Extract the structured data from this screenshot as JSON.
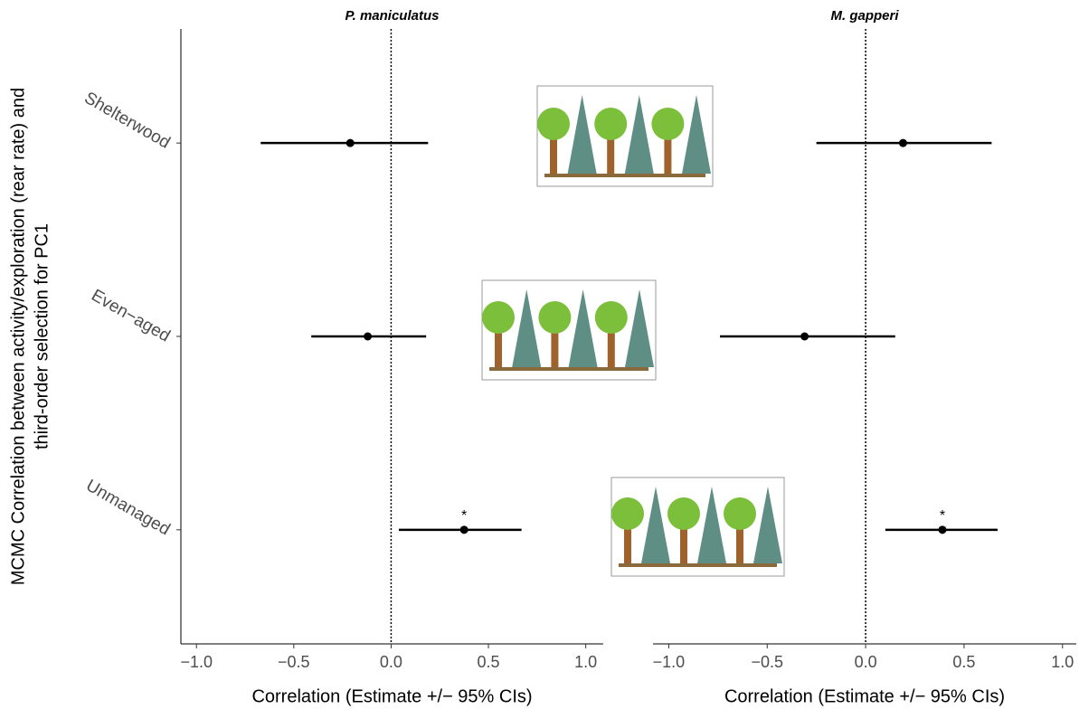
{
  "chart_data": [
    {
      "type": "forest",
      "title": "P. maniculatus",
      "ylabel": [
        "MCMC Correlation between activity/exploration (rear rate) and",
        "third-order selection for PC1"
      ],
      "xlabel": "Correlation (Estimate +/− 95% CIs)",
      "categories": [
        "Shelterwood",
        "Even−aged",
        "Unmanaged"
      ],
      "values": [
        -0.21,
        -0.12,
        0.375
      ],
      "lower": [
        -0.67,
        -0.41,
        0.04
      ],
      "upper": [
        0.19,
        0.18,
        0.67
      ],
      "annotations": [
        null,
        null,
        "*"
      ],
      "color": "#000000",
      "xlim": [
        -1.08,
        1.09
      ],
      "xticks": [
        {
          "value": -1,
          "label": "−1.0"
        },
        {
          "value": -0.5,
          "label": "−0.5"
        },
        {
          "value": 0,
          "label": "0.0"
        },
        0.5,
        {
          "value": 1,
          "label": "1.0"
        }
      ],
      "refline": 0
    },
    {
      "type": "forest",
      "title": "M. gapperi",
      "xlabel": "Correlation (Estimate +/− 95% CIs)",
      "values": [
        0.19,
        -0.31,
        0.39
      ],
      "lower": [
        -0.25,
        -0.74,
        0.1
      ],
      "upper": [
        0.64,
        0.15,
        0.67
      ],
      "annotations": [
        null,
        null,
        "*"
      ],
      "color": "#000000",
      "xlim": [
        -1.08,
        1.07
      ],
      "xticks": [
        {
          "value": -1,
          "label": "−1.0"
        },
        {
          "value": -0.5,
          "label": "−0.5"
        },
        {
          "value": 0,
          "label": "0.0"
        },
        0.5,
        {
          "value": 1,
          "label": "1.0"
        }
      ],
      "refline": 0
    }
  ]
}
